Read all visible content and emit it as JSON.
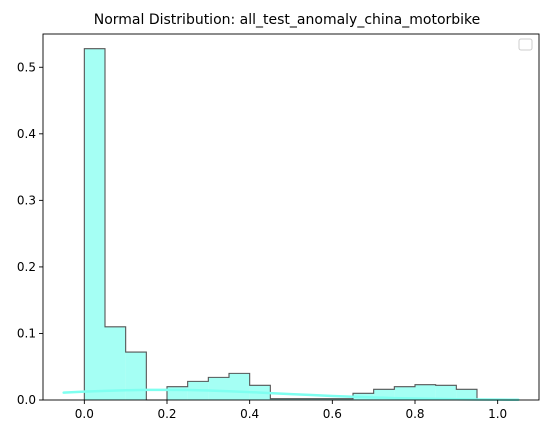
{
  "chart_data": {
    "type": "bar",
    "title": "Normal Distribution: all_test_anomaly_china_motorbike",
    "xlabel": "",
    "ylabel": "",
    "xlim": [
      -0.1,
      1.1
    ],
    "ylim": [
      0,
      0.55
    ],
    "xticks": [
      0.0,
      0.2,
      0.4,
      0.6,
      0.8,
      1.0
    ],
    "xtick_labels": [
      "0.0",
      "0.2",
      "0.4",
      "0.6",
      "0.8",
      "1.0"
    ],
    "yticks": [
      0.0,
      0.1,
      0.2,
      0.3,
      0.4,
      0.5
    ],
    "ytick_labels": [
      "0.0",
      "0.1",
      "0.2",
      "0.3",
      "0.4",
      "0.5"
    ],
    "grid": false,
    "legend": {
      "placement": "upper right",
      "entries": []
    },
    "histogram": {
      "bin_edges": [
        0.0,
        0.05,
        0.1,
        0.15,
        0.2,
        0.25,
        0.3,
        0.35,
        0.4,
        0.45,
        0.5,
        0.55,
        0.6,
        0.65,
        0.7,
        0.75,
        0.8,
        0.85,
        0.9,
        0.95
      ],
      "values": [
        0.528,
        0.11,
        0.072,
        0.0,
        0.02,
        0.028,
        0.034,
        0.04,
        0.022,
        0.002,
        0.002,
        0.002,
        0.002,
        0.01,
        0.016,
        0.02,
        0.023,
        0.022,
        0.016
      ],
      "fill_color": "#7ffff0",
      "edge_color": "#555555"
    },
    "curve": {
      "x": [
        -0.05,
        0.0,
        0.05,
        0.1,
        0.15,
        0.2,
        0.25,
        0.3,
        0.35,
        0.4,
        0.45,
        0.5,
        0.55,
        0.6,
        0.65,
        0.7,
        0.75,
        0.8,
        0.85,
        0.9,
        0.95,
        1.0,
        1.05
      ],
      "y": [
        0.011,
        0.0125,
        0.0138,
        0.0147,
        0.0152,
        0.0153,
        0.015,
        0.0143,
        0.0132,
        0.0119,
        0.0104,
        0.0089,
        0.0075,
        0.0061,
        0.0049,
        0.0038,
        0.0029,
        0.0022,
        0.0016,
        0.0011,
        0.0008,
        0.0005,
        0.0003
      ],
      "color": "#7ffff0"
    }
  }
}
